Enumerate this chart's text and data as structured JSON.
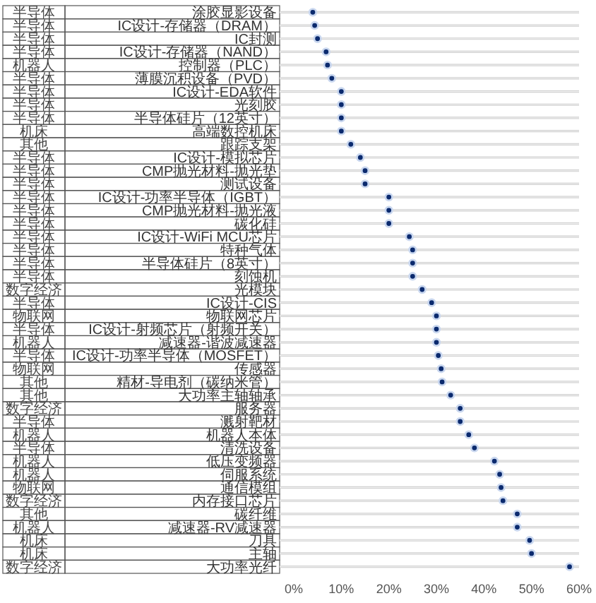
{
  "chart_data": {
    "type": "scatter",
    "orientation": "horizontal",
    "marker": "circle",
    "grid": "y",
    "color": "#0b2a6e",
    "categories": [
      "涂胶显影设备",
      "IC设计-存储器（DRAM）",
      "IC封测",
      "IC设计-存储器（NAND）",
      "控制器（PLC）",
      "薄膜沉积设备（PVD）",
      "IC设计-EDA软件",
      "光刻胶",
      "半导体硅片（12英寸）",
      "高端数控机床",
      "跟踪支架",
      "IC设计-模拟芯片",
      "CMP抛光材料-抛光垫",
      "测试设备",
      "IC设计-功率半导体（IGBT）",
      "CMP抛光材料-抛光液",
      "碳化硅",
      "IC设计-WiFi MCU芯片",
      "特种气体",
      "半导体硅片（8英寸）",
      "刻蚀机",
      "光模块",
      "IC设计-CIS",
      "物联网芯片",
      "IC设计-射频芯片（射频开关）",
      "减速器-谐波减速器",
      "IC设计-功率半导体（MOSFET）",
      "传感器",
      "精材-导电剂（碳纳米管）",
      "大功率主轴轴承",
      "服务器",
      "溅射靶材",
      "机器人本体",
      "清洗设备",
      "低压变频器",
      "伺服系统",
      "通信模组",
      "内存接口芯片",
      "碳纤维",
      "减速器-RV减速器",
      "刀具",
      "主轴",
      "大功率光纤"
    ],
    "y2_categories": [
      "半导体",
      "半导体",
      "半导体",
      "半导体",
      "机器人",
      "半导体",
      "半导体",
      "半导体",
      "半导体",
      "机床",
      "其他",
      "半导体",
      "半导体",
      "半导体",
      "半导体",
      "半导体",
      "半导体",
      "半导体",
      "半导体",
      "半导体",
      "半导体",
      "数字经济",
      "半导体",
      "物联网",
      "半导体",
      "机器人",
      "半导体",
      "物联网",
      "其他",
      "其他",
      "数字经济",
      "半导体",
      "机器人",
      "半导体",
      "机器人",
      "机器人",
      "物联网",
      "数字经济",
      "其他",
      "机器人",
      "机床",
      "机床",
      "数字经济"
    ],
    "values": [
      4,
      4.4,
      5,
      6.8,
      7.1,
      8,
      10,
      10,
      10,
      10,
      12,
      14,
      15,
      15,
      20,
      20,
      20,
      24.3,
      25,
      25,
      25,
      27,
      29,
      30,
      30,
      30,
      30.4,
      31,
      31.2,
      33,
      35,
      35,
      36.8,
      38,
      42.2,
      43.3,
      43.6,
      44,
      47,
      47,
      49.6,
      50,
      58
    ],
    "xlim": [
      0,
      60
    ],
    "xticks": [
      {
        "value": 0,
        "label": "0%"
      },
      {
        "value": 10,
        "label": "10%"
      },
      {
        "value": 20,
        "label": "20%"
      },
      {
        "value": 30,
        "label": "30%"
      },
      {
        "value": 40,
        "label": "40%"
      },
      {
        "value": 50,
        "label": "50%"
      },
      {
        "value": 60,
        "label": "60%"
      }
    ]
  }
}
